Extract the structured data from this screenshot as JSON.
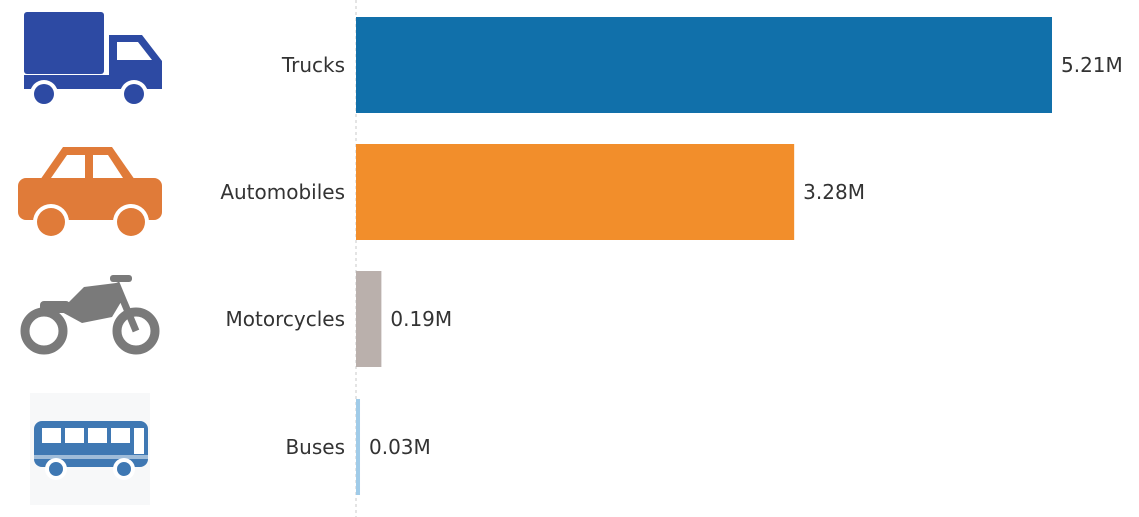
{
  "chart_data": {
    "type": "bar",
    "orientation": "horizontal",
    "categories": [
      "Trucks",
      "Automobiles",
      "Motorcycles",
      "Buses"
    ],
    "values": [
      5.21,
      3.28,
      0.19,
      0.03
    ],
    "value_labels": [
      "5.21M",
      "3.28M",
      "0.19M",
      "0.03M"
    ],
    "unit": "M",
    "colors": [
      "#1170aa",
      "#f28e2b",
      "#bab0ac",
      "#a0cbe8"
    ],
    "icons": [
      "truck-icon",
      "car-icon",
      "motorcycle-icon",
      "bus-icon"
    ],
    "icon_colors": [
      "#2d4aa3",
      "#e07b39",
      "#7a7a7a",
      "#3f78b3"
    ],
    "title": "",
    "xlabel": "",
    "ylabel": "",
    "grid": false,
    "legend": "none"
  }
}
